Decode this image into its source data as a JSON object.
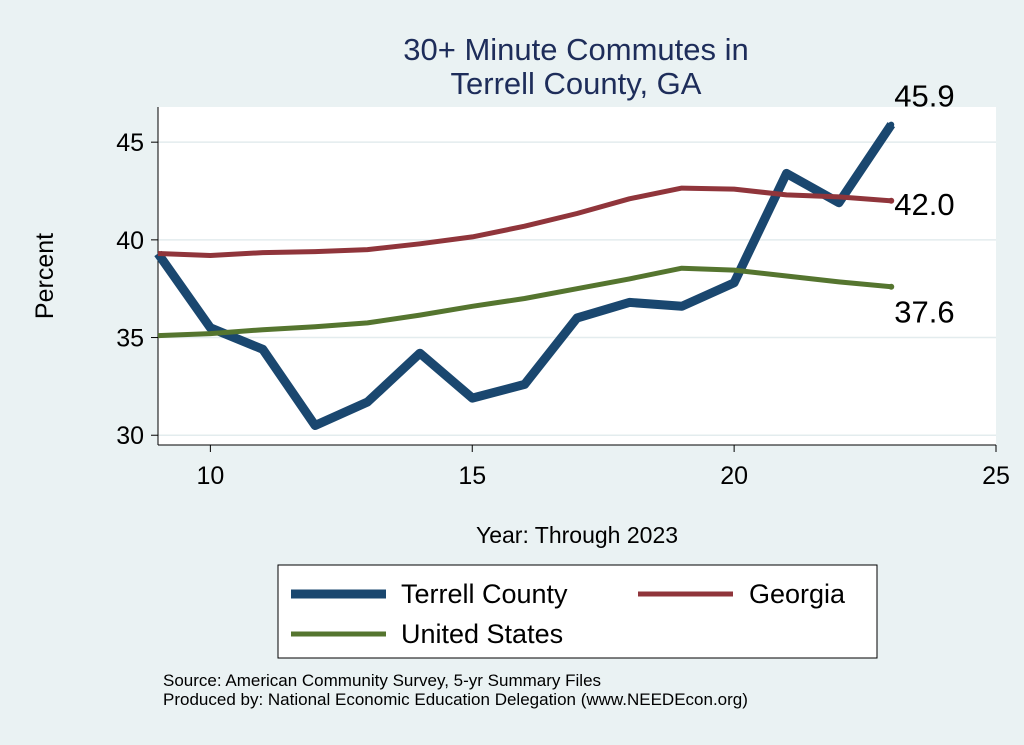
{
  "chart_data": {
    "type": "line",
    "title": [
      "30+ Minute Commutes in",
      "Terrell County, GA"
    ],
    "xlabel": "Year: Through 2023",
    "ylabel": "Percent",
    "xlim": [
      9,
      25
    ],
    "ylim": [
      29.5,
      46.8
    ],
    "x_ticks": [
      10,
      15,
      20,
      25
    ],
    "y_ticks": [
      30,
      35,
      40,
      45
    ],
    "grid": true,
    "legend_position": "bottom",
    "series": [
      {
        "name": "Terrell County",
        "color": "#1a476f",
        "x": [
          9,
          10,
          11,
          12,
          13,
          14,
          15,
          16,
          17,
          18,
          19,
          20,
          21,
          22,
          23
        ],
        "values": [
          39.3,
          35.5,
          34.4,
          30.5,
          31.7,
          34.2,
          31.9,
          32.6,
          36.0,
          36.8,
          36.6,
          37.8,
          43.4,
          41.9,
          45.9
        ],
        "end_label": "45.9"
      },
      {
        "name": "Georgia",
        "color": "#90353b",
        "x": [
          9,
          10,
          11,
          12,
          13,
          14,
          15,
          16,
          17,
          18,
          19,
          20,
          21,
          22,
          23
        ],
        "values": [
          39.3,
          39.2,
          39.35,
          39.4,
          39.5,
          39.8,
          40.15,
          40.7,
          41.35,
          42.1,
          42.65,
          42.6,
          42.3,
          42.2,
          42.0
        ],
        "end_label": "42.0"
      },
      {
        "name": "United States",
        "color": "#55752f",
        "x": [
          9,
          10,
          11,
          12,
          13,
          14,
          15,
          16,
          17,
          18,
          19,
          20,
          21,
          22,
          23
        ],
        "values": [
          35.1,
          35.2,
          35.4,
          35.55,
          35.75,
          36.15,
          36.6,
          37.0,
          37.5,
          38.0,
          38.55,
          38.45,
          38.15,
          37.85,
          37.6
        ],
        "end_label": "37.6"
      }
    ]
  },
  "footer": {
    "source": "Source: American Community Survey, 5-yr Summary Files",
    "produced": "Produced by: National Economic Education Delegation (www.NEEDEcon.org)"
  }
}
